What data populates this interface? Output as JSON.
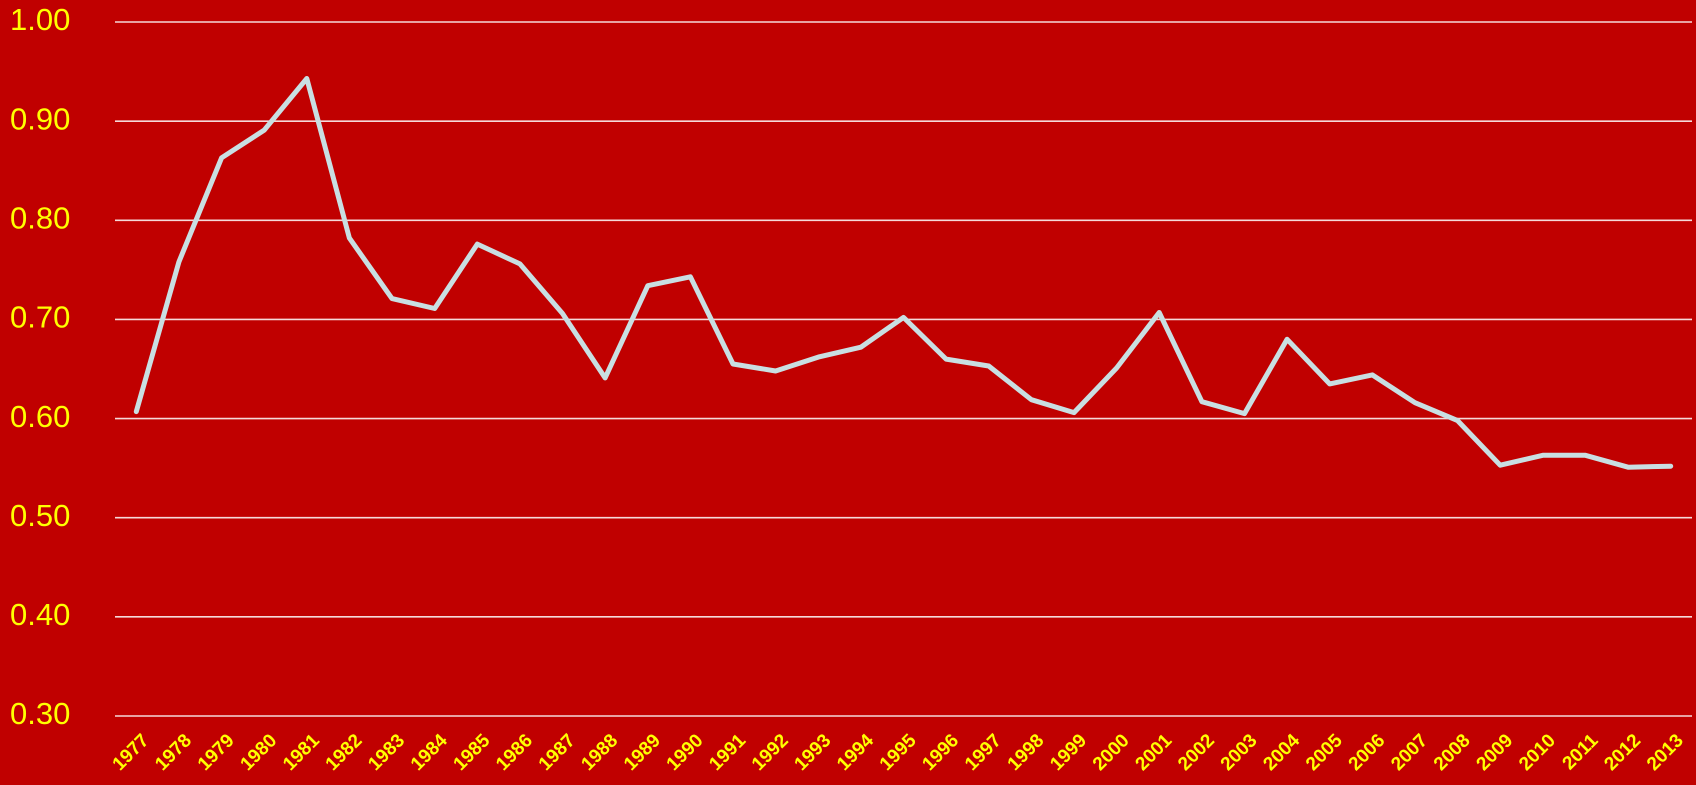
{
  "chart_data": {
    "type": "line",
    "categories": [
      "1977",
      "1978",
      "1979",
      "1980",
      "1981",
      "1982",
      "1983",
      "1984",
      "1985",
      "1986",
      "1987",
      "1988",
      "1989",
      "1990",
      "1991",
      "1992",
      "1993",
      "1994",
      "1995",
      "1996",
      "1997",
      "1998",
      "1999",
      "2000",
      "2001",
      "2002",
      "2003",
      "2004",
      "2005",
      "2006",
      "2007",
      "2008",
      "2009",
      "2010",
      "2011",
      "2012",
      "2013"
    ],
    "series": [
      {
        "color": "#c9dfe2",
        "values": [
          0.607,
          0.758,
          0.863,
          0.891,
          0.943,
          0.782,
          0.721,
          0.711,
          0.776,
          0.756,
          0.706,
          0.641,
          0.734,
          0.743,
          0.655,
          0.648,
          0.662,
          0.672,
          0.702,
          0.66,
          0.653,
          0.619,
          0.606,
          0.651,
          0.707,
          0.617,
          0.605,
          0.68,
          0.635,
          0.644,
          0.616,
          0.598,
          0.553,
          0.563,
          0.563,
          0.551,
          0.552
        ]
      }
    ],
    "ylim": [
      0.3,
      1.0
    ],
    "yticks": [
      {
        "value": 0.3,
        "label": "0.30"
      },
      {
        "value": 0.4,
        "label": "0.40"
      },
      {
        "value": 0.5,
        "label": "0.50"
      },
      {
        "value": 0.6,
        "label": "0.60"
      },
      {
        "value": 0.7,
        "label": "0.70"
      },
      {
        "value": 0.8,
        "label": "0.80"
      },
      {
        "value": 0.9,
        "label": "0.90"
      },
      {
        "value": 1.0,
        "label": "1.00"
      }
    ],
    "grid": true
  }
}
